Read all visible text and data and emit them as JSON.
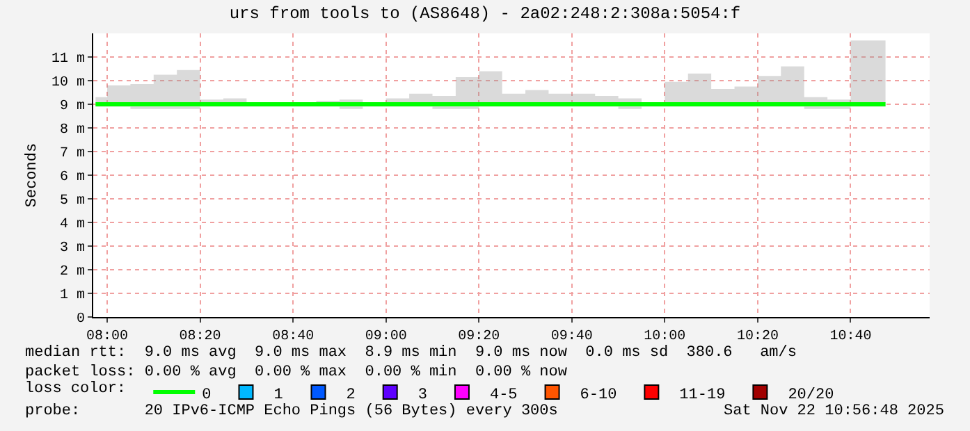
{
  "chart_data": {
    "type": "line",
    "title": "urs from tools to (AS8648) - 2a02:248:2:308a:5054:f",
    "ylabel": "Seconds",
    "x": [
      "2025-11-22T07:57:30",
      "2025-11-22T08:02:30",
      "2025-11-22T08:07:30",
      "2025-11-22T08:12:30",
      "2025-11-22T08:17:30",
      "2025-11-22T08:22:30",
      "2025-11-22T08:27:30",
      "2025-11-22T08:32:30",
      "2025-11-22T08:37:30",
      "2025-11-22T08:42:30",
      "2025-11-22T08:47:30",
      "2025-11-22T08:52:30",
      "2025-11-22T08:57:30",
      "2025-11-22T09:02:30",
      "2025-11-22T09:07:30",
      "2025-11-22T09:12:30",
      "2025-11-22T09:17:30",
      "2025-11-22T09:22:30",
      "2025-11-22T09:27:30",
      "2025-11-22T09:32:30",
      "2025-11-22T09:37:30",
      "2025-11-22T09:42:30",
      "2025-11-22T09:47:30",
      "2025-11-22T09:52:30",
      "2025-11-22T09:57:30",
      "2025-11-22T10:02:30",
      "2025-11-22T10:07:30",
      "2025-11-22T10:12:30",
      "2025-11-22T10:17:30",
      "2025-11-22T10:22:30",
      "2025-11-22T10:27:30",
      "2025-11-22T10:32:30",
      "2025-11-22T10:37:30",
      "2025-11-22T10:42:30",
      "2025-11-22T10:47:30"
    ],
    "series": [
      {
        "name": "0",
        "color": "#00ff00",
        "values": [
          9.0,
          9.0,
          9.0,
          9.0,
          9.0,
          9.0,
          9.0,
          9.0,
          9.0,
          9.0,
          9.0,
          9.0,
          9.0,
          9.0,
          9.0,
          9.0,
          9.0,
          9.0,
          9.0,
          9.0,
          9.0,
          9.0,
          9.0,
          9.0,
          9.0,
          9.0,
          9.0,
          9.0,
          9.0,
          9.0,
          9.0,
          9.0,
          9.0,
          9.0,
          9.0
        ],
        "lower": [
          8.9,
          8.9,
          8.8,
          8.8,
          8.8,
          8.9,
          8.9,
          8.9,
          8.9,
          8.9,
          8.9,
          8.8,
          8.9,
          8.9,
          8.9,
          8.8,
          8.8,
          8.9,
          8.9,
          8.9,
          8.9,
          8.9,
          8.9,
          8.8,
          8.9,
          8.9,
          8.9,
          8.9,
          8.9,
          8.9,
          8.9,
          8.8,
          8.8,
          8.9,
          8.9
        ],
        "upper": [
          9.3,
          9.8,
          9.85,
          10.25,
          10.45,
          9.2,
          9.25,
          9.05,
          9.05,
          9.05,
          9.15,
          9.2,
          9.05,
          9.25,
          9.45,
          9.35,
          10.15,
          10.4,
          9.45,
          9.6,
          9.45,
          9.45,
          9.35,
          9.25,
          9.05,
          9.95,
          10.3,
          9.65,
          9.75,
          10.2,
          10.6,
          9.3,
          9.2,
          11.7,
          11.7
        ]
      },
      {
        "name": "1",
        "color": "#00b8ff",
        "values": [
          null,
          null,
          null,
          null,
          null,
          null,
          null,
          null,
          null,
          null,
          null,
          null,
          null,
          null,
          null,
          null,
          null,
          null,
          null,
          null,
          null,
          null,
          null,
          null,
          null,
          null,
          null,
          null,
          null,
          null,
          null,
          null,
          null,
          null,
          null
        ]
      },
      {
        "name": "2",
        "color": "#0059ff",
        "values": [
          null,
          null,
          null,
          null,
          null,
          null,
          null,
          null,
          null,
          null,
          null,
          null,
          null,
          null,
          null,
          null,
          null,
          null,
          null,
          null,
          null,
          null,
          null,
          null,
          null,
          null,
          null,
          null,
          null,
          null,
          null,
          null,
          null,
          null,
          null
        ]
      },
      {
        "name": "3",
        "color": "#5e00ff",
        "values": [
          null,
          null,
          null,
          null,
          null,
          null,
          null,
          null,
          null,
          null,
          null,
          null,
          null,
          null,
          null,
          null,
          null,
          null,
          null,
          null,
          null,
          null,
          null,
          null,
          null,
          null,
          null,
          null,
          null,
          null,
          null,
          null,
          null,
          null,
          null
        ]
      },
      {
        "name": "4-5",
        "color": "#ff00ff",
        "values": [
          null,
          null,
          null,
          null,
          null,
          null,
          null,
          null,
          null,
          null,
          null,
          null,
          null,
          null,
          null,
          null,
          null,
          null,
          null,
          null,
          null,
          null,
          null,
          null,
          null,
          null,
          null,
          null,
          null,
          null,
          null,
          null,
          null,
          null,
          null
        ]
      },
      {
        "name": "6-10",
        "color": "#ff5500",
        "values": [
          null,
          null,
          null,
          null,
          null,
          null,
          null,
          null,
          null,
          null,
          null,
          null,
          null,
          null,
          null,
          null,
          null,
          null,
          null,
          null,
          null,
          null,
          null,
          null,
          null,
          null,
          null,
          null,
          null,
          null,
          null,
          null,
          null,
          null,
          null
        ]
      },
      {
        "name": "11-19",
        "color": "#ff0000",
        "values": [
          null,
          null,
          null,
          null,
          null,
          null,
          null,
          null,
          null,
          null,
          null,
          null,
          null,
          null,
          null,
          null,
          null,
          null,
          null,
          null,
          null,
          null,
          null,
          null,
          null,
          null,
          null,
          null,
          null,
          null,
          null,
          null,
          null,
          null,
          null
        ]
      },
      {
        "name": "20/20",
        "color": "#a10000",
        "values": [
          null,
          null,
          null,
          null,
          null,
          null,
          null,
          null,
          null,
          null,
          null,
          null,
          null,
          null,
          null,
          null,
          null,
          null,
          null,
          null,
          null,
          null,
          null,
          null,
          null,
          null,
          null,
          null,
          null,
          null,
          null,
          null,
          null,
          null,
          null
        ]
      }
    ],
    "legend_title": "loss color:",
    "legend": "bottom",
    "xlim": [
      "2025-11-22T07:57",
      "2025-11-22T10:57"
    ],
    "xticks": [
      {
        "value": "2025-11-22T08:00",
        "label": "08:00"
      },
      {
        "value": "2025-11-22T08:20",
        "label": "08:20"
      },
      {
        "value": "2025-11-22T08:40",
        "label": "08:40"
      },
      {
        "value": "2025-11-22T09:00",
        "label": "09:00"
      },
      {
        "value": "2025-11-22T09:20",
        "label": "09:20"
      },
      {
        "value": "2025-11-22T09:40",
        "label": "09:40"
      },
      {
        "value": "2025-11-22T10:00",
        "label": "10:00"
      },
      {
        "value": "2025-11-22T10:20",
        "label": "10:20"
      },
      {
        "value": "2025-11-22T10:40",
        "label": "10:40"
      }
    ],
    "ylim": [
      0,
      12
    ],
    "yticks": [
      0,
      {
        "value": 1,
        "label": "1 m"
      },
      {
        "value": 2,
        "label": "2 m"
      },
      {
        "value": 3,
        "label": "3 m"
      },
      {
        "value": 4,
        "label": "4 m"
      },
      {
        "value": 5,
        "label": "5 m"
      },
      {
        "value": 6,
        "label": "6 m"
      },
      {
        "value": 7,
        "label": "7 m"
      },
      {
        "value": 8,
        "label": "8 m"
      },
      {
        "value": 9,
        "label": "9 m"
      },
      {
        "value": 10,
        "label": "10 m"
      },
      {
        "value": 11,
        "label": "11 m"
      }
    ],
    "grid": true,
    "line_style": "solid",
    "annotations": [
      "median rtt:  9.0 ms avg  9.0 ms max  8.9 ms min  9.0 ms now  0.0 ms sd  380.6   am/s",
      "packet loss: 0.00 % avg  0.00 % max  0.00 % min  0.00 % now",
      "probe:       20 IPv6-ICMP Echo Pings (56 Bytes) every 300s",
      "Sat Nov 22 10:56:48 2025"
    ]
  }
}
